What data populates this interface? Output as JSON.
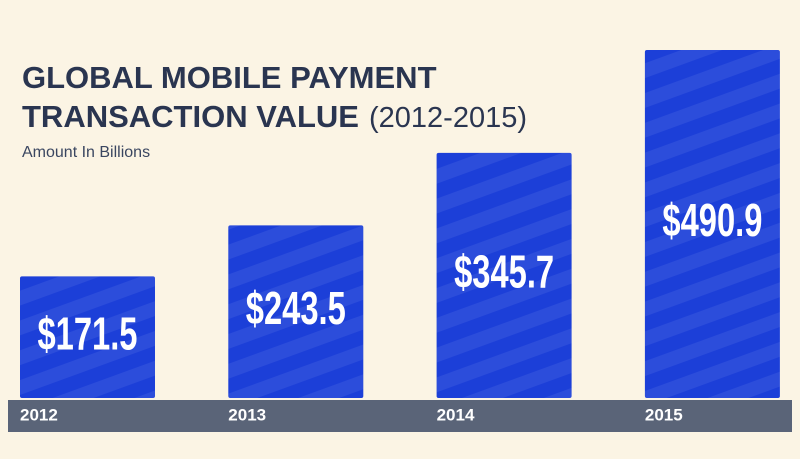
{
  "chart_data": {
    "type": "bar",
    "title_lines": [
      "GLOBAL MOBILE PAYMENT",
      "TRANSACTION VALUE"
    ],
    "title_suffix": "(2012-2015)",
    "subtitle": "Amount In Billions",
    "categories": [
      "2012",
      "2013",
      "2014",
      "2015"
    ],
    "values": [
      171.5,
      243.5,
      345.7,
      490.9
    ],
    "value_labels": [
      "$171.5",
      "$243.5",
      "$345.7",
      "$490.9"
    ],
    "color": "#1c3fd8"
  }
}
